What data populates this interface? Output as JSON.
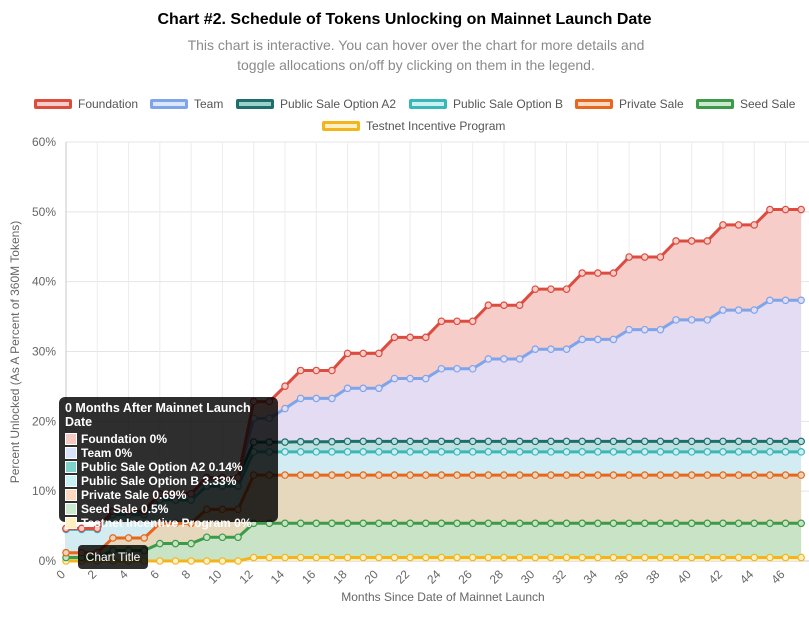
{
  "header": {
    "title": "Chart #2. Schedule of Tokens Unlocking on Mainnet Launch Date",
    "subtitle_line1": "This chart is interactive. You can hover over the chart for more details and",
    "subtitle_line2": "toggle allocations on/off by clicking on them in the legend."
  },
  "tooltip": {
    "title": "0 Months After Mainnet Launch Date",
    "rows": [
      {
        "label": "Foundation 0%",
        "color": "#f6c9c4"
      },
      {
        "label": "Team 0%",
        "color": "#d9e4fb"
      },
      {
        "label": "Public Sale Option A2 0.14%",
        "color": "#7fd2cc"
      },
      {
        "label": "Public Sale Option B 3.33%",
        "color": "#c9f1f3"
      },
      {
        "label": "Private Sale 0.69%",
        "color": "#fbd8bf"
      },
      {
        "label": "Seed Sale 0.5%",
        "color": "#cbe9cf"
      },
      {
        "label": "Testnet Incentive Program 0%",
        "color": "#fdf0c2"
      }
    ]
  },
  "hint": {
    "label": "Chart Title"
  },
  "chart_data": {
    "type": "area",
    "stacked": true,
    "xlabel": "Months Since Date of Mainnet Launch",
    "ylabel": "Percent Unlocked (As A Percent of 360M Tokens)",
    "ylim": [
      0,
      60
    ],
    "yticks": [
      "0%",
      "10%",
      "20%",
      "30%",
      "40%",
      "50%",
      "60%"
    ],
    "xtick_labels": [
      "0",
      "2",
      "4",
      "6",
      "8",
      "10",
      "12",
      "14",
      "16",
      "18",
      "20",
      "22",
      "24",
      "26",
      "28",
      "30",
      "32",
      "34",
      "36",
      "38",
      "40",
      "42",
      "44",
      "46"
    ],
    "grid": true,
    "legend_position": "top",
    "x": [
      0,
      1,
      2,
      3,
      4,
      5,
      6,
      7,
      8,
      9,
      10,
      11,
      12,
      13,
      14,
      15,
      16,
      17,
      18,
      19,
      20,
      21,
      22,
      23,
      24,
      25,
      26,
      27,
      28,
      29,
      30,
      31,
      32,
      33,
      34,
      35,
      36,
      37,
      38,
      39,
      40,
      41,
      42,
      43,
      44,
      45,
      46,
      47
    ],
    "series": [
      {
        "name": "Testnet Incentive Program",
        "border": "#f2b51c",
        "fill": "#fcefc4",
        "values": [
          0,
          0,
          0,
          0,
          0,
          0,
          0,
          0,
          0,
          0,
          0,
          0,
          0.5,
          0.5,
          0.5,
          0.5,
          0.5,
          0.5,
          0.5,
          0.5,
          0.5,
          0.5,
          0.5,
          0.5,
          0.5,
          0.5,
          0.5,
          0.5,
          0.5,
          0.5,
          0.5,
          0.5,
          0.5,
          0.5,
          0.5,
          0.5,
          0.5,
          0.5,
          0.5,
          0.5,
          0.5,
          0.5,
          0.5,
          0.5,
          0.5,
          0.5,
          0.5,
          0.5
        ]
      },
      {
        "name": "Seed Sale",
        "border": "#3c9a48",
        "fill": "#c9e3c6",
        "values": [
          0.5,
          0.5,
          0.5,
          1.5,
          1.5,
          1.5,
          2.5,
          2.5,
          2.5,
          3.4,
          3.4,
          3.4,
          4.9,
          4.9,
          4.9,
          4.9,
          4.9,
          4.9,
          4.9,
          4.9,
          4.9,
          4.9,
          4.9,
          4.9,
          4.9,
          4.9,
          4.9,
          4.9,
          4.9,
          4.9,
          4.9,
          4.9,
          4.9,
          4.9,
          4.9,
          4.9,
          4.9,
          4.9,
          4.9,
          4.9,
          4.9,
          4.9,
          4.9,
          4.9,
          4.9,
          4.9,
          4.9,
          4.9
        ]
      },
      {
        "name": "Private Sale",
        "border": "#e8661e",
        "fill": "#e6d8bd",
        "values": [
          0.69,
          0.69,
          0.69,
          1.8,
          1.8,
          1.8,
          2.9,
          2.9,
          2.9,
          4.0,
          4.0,
          4.0,
          6.9,
          6.9,
          6.9,
          6.9,
          6.9,
          6.9,
          6.9,
          6.9,
          6.9,
          6.9,
          6.9,
          6.9,
          6.9,
          6.9,
          6.9,
          6.9,
          6.9,
          6.9,
          6.9,
          6.9,
          6.9,
          6.9,
          6.9,
          6.9,
          6.9,
          6.9,
          6.9,
          6.9,
          6.9,
          6.9,
          6.9,
          6.9,
          6.9,
          6.9,
          6.9,
          6.9
        ]
      },
      {
        "name": "Public Sale Option B",
        "border": "#3ab7b8",
        "fill": "#d3ecf2",
        "values": [
          3.33,
          3.33,
          3.33,
          3.33,
          3.33,
          3.33,
          3.33,
          3.33,
          3.33,
          3.33,
          3.33,
          3.33,
          3.33,
          3.33,
          3.33,
          3.33,
          3.33,
          3.33,
          3.33,
          3.33,
          3.33,
          3.33,
          3.33,
          3.33,
          3.33,
          3.33,
          3.33,
          3.33,
          3.33,
          3.33,
          3.33,
          3.33,
          3.33,
          3.33,
          3.33,
          3.33,
          3.33,
          3.33,
          3.33,
          3.33,
          3.33,
          3.33,
          3.33,
          3.33,
          3.33,
          3.33,
          3.33,
          3.33
        ]
      },
      {
        "name": "Public Sale Option A2",
        "border": "#1f6e6b",
        "fill": "#bfe0e0",
        "values": [
          0.14,
          0.14,
          0.14,
          0.5,
          0.5,
          0.5,
          0.9,
          0.9,
          0.9,
          1.2,
          1.2,
          1.2,
          1.4,
          1.4,
          1.4,
          1.45,
          1.45,
          1.45,
          1.5,
          1.5,
          1.5,
          1.5,
          1.5,
          1.5,
          1.5,
          1.5,
          1.5,
          1.5,
          1.5,
          1.5,
          1.5,
          1.5,
          1.5,
          1.5,
          1.5,
          1.5,
          1.5,
          1.5,
          1.5,
          1.5,
          1.5,
          1.5,
          1.5,
          1.5,
          1.5,
          1.5,
          1.5,
          1.5
        ]
      },
      {
        "name": "Team",
        "border": "#7ea5ea",
        "fill": "#e3dcf2",
        "values": [
          0,
          0,
          0,
          0,
          0,
          0,
          0,
          0,
          0,
          0,
          0,
          0,
          3.4,
          3.4,
          4.8,
          6.2,
          6.2,
          6.2,
          7.6,
          7.6,
          7.6,
          9.0,
          9.0,
          9.0,
          10.4,
          10.4,
          10.4,
          11.8,
          11.8,
          11.8,
          13.2,
          13.2,
          13.2,
          14.6,
          14.6,
          14.6,
          16.0,
          16.0,
          16.0,
          17.4,
          17.4,
          17.4,
          18.8,
          18.8,
          18.8,
          20.2,
          20.2,
          20.2
        ]
      },
      {
        "name": "Foundation",
        "border": "#dc4c3f",
        "fill": "#f6cdc9",
        "values": [
          0,
          0,
          0,
          0,
          0,
          0,
          0,
          0,
          0,
          0,
          0,
          0,
          2.4,
          2.4,
          3.2,
          4.0,
          4.0,
          4.0,
          5.0,
          5.0,
          5.0,
          5.9,
          5.9,
          5.9,
          6.8,
          6.8,
          6.8,
          7.7,
          7.7,
          7.7,
          8.6,
          8.6,
          8.6,
          9.5,
          9.5,
          9.5,
          10.4,
          10.4,
          10.4,
          11.3,
          11.3,
          11.3,
          12.2,
          12.2,
          12.2,
          13.0,
          13.0,
          13.0
        ]
      }
    ]
  }
}
